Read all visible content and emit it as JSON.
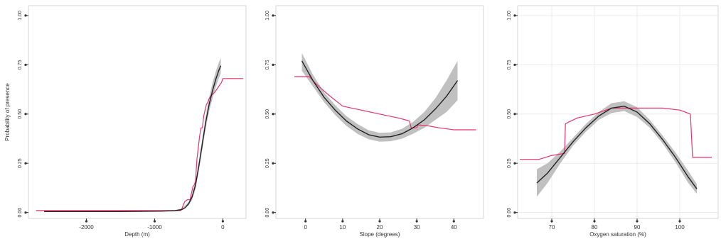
{
  "chart_data": [
    {
      "type": "line",
      "xlabel": "Depth (m)",
      "ylabel": "Probability of presence",
      "xlim": [
        -2850,
        340
      ],
      "ylim": [
        -0.03,
        1.05
      ],
      "xticks": [
        -2000,
        -1000,
        0
      ],
      "xtick_labels": [
        "-2000",
        "-1000",
        "0"
      ],
      "yticks": [
        0,
        0.25,
        0.5,
        0.75,
        1
      ],
      "ytick_labels": [
        "0.00",
        "0.25",
        "0.50",
        "0.75",
        "1.00"
      ],
      "grid": false,
      "colors": {
        "fit": "#222222",
        "ci": "#bdbdbd",
        "observed": "#e8336b"
      },
      "series": [
        {
          "role": "fit",
          "x": [
            -2620,
            -1500,
            -900,
            -700,
            -600,
            -550,
            -500,
            -450,
            -400,
            -350,
            -300,
            -250,
            -200,
            -150,
            -100,
            -60,
            -30
          ],
          "y": [
            0.005,
            0.005,
            0.007,
            0.01,
            0.015,
            0.025,
            0.045,
            0.08,
            0.14,
            0.24,
            0.35,
            0.46,
            0.55,
            0.62,
            0.68,
            0.72,
            0.745
          ]
        },
        {
          "role": "ci_upper",
          "x": [
            -700,
            -600,
            -500,
            -450,
            -400,
            -350,
            -300,
            -250,
            -200,
            -150,
            -100,
            -60,
            -30
          ],
          "y": [
            0.012,
            0.02,
            0.055,
            0.095,
            0.16,
            0.265,
            0.38,
            0.49,
            0.585,
            0.66,
            0.72,
            0.76,
            0.785
          ]
        },
        {
          "role": "ci_lower",
          "x": [
            -700,
            -600,
            -500,
            -450,
            -400,
            -350,
            -300,
            -250,
            -200,
            -150,
            -100,
            -60,
            -30
          ],
          "y": [
            0.008,
            0.012,
            0.037,
            0.065,
            0.12,
            0.215,
            0.32,
            0.43,
            0.515,
            0.58,
            0.64,
            0.68,
            0.705
          ]
        },
        {
          "role": "observed",
          "x": [
            -2740,
            -800,
            -620,
            -600,
            -560,
            -520,
            -480,
            -440,
            -420,
            -400,
            -380,
            -360,
            -340,
            -320,
            -300,
            -280,
            -260,
            -240,
            -220,
            -200,
            -180,
            -150,
            -120,
            -100,
            -60,
            -20,
            0,
            300
          ],
          "y": [
            0.01,
            0.01,
            0.01,
            0.02,
            0.055,
            0.065,
            0.065,
            0.13,
            0.14,
            0.16,
            0.27,
            0.33,
            0.39,
            0.43,
            0.43,
            0.49,
            0.52,
            0.55,
            0.56,
            0.58,
            0.59,
            0.6,
            0.61,
            0.62,
            0.64,
            0.66,
            0.68,
            0.68
          ]
        }
      ]
    },
    {
      "type": "line",
      "xlabel": "Slope (degrees)",
      "ylabel": "",
      "xlim": [
        -8,
        48
      ],
      "ylim": [
        -0.03,
        1.05
      ],
      "xticks": [
        0,
        10,
        20,
        30,
        40
      ],
      "xtick_labels": [
        "0",
        "10",
        "20",
        "30",
        "40"
      ],
      "yticks": [
        0,
        0.25,
        0.5,
        0.75,
        1
      ],
      "ytick_labels": [
        "0.00",
        "0.25",
        "0.50",
        "0.75",
        "1.00"
      ],
      "grid": false,
      "colors": {
        "fit": "#222222",
        "ci": "#bdbdbd",
        "observed": "#e8336b"
      },
      "series": [
        {
          "role": "fit",
          "x": [
            -1,
            2,
            5,
            8,
            11,
            14,
            17,
            20,
            23,
            26,
            29,
            32,
            35,
            38,
            41
          ],
          "y": [
            0.77,
            0.67,
            0.585,
            0.52,
            0.465,
            0.425,
            0.395,
            0.383,
            0.385,
            0.4,
            0.43,
            0.47,
            0.525,
            0.59,
            0.67
          ]
        },
        {
          "role": "ci_upper",
          "x": [
            -1,
            2,
            5,
            8,
            11,
            14,
            17,
            20,
            23,
            26,
            29,
            32,
            35,
            38,
            41
          ],
          "y": [
            0.81,
            0.7,
            0.61,
            0.545,
            0.49,
            0.45,
            0.418,
            0.405,
            0.407,
            0.425,
            0.46,
            0.51,
            0.58,
            0.67,
            0.77
          ]
        },
        {
          "role": "ci_lower",
          "x": [
            -1,
            2,
            5,
            8,
            11,
            14,
            17,
            20,
            23,
            26,
            29,
            32,
            35,
            38,
            41
          ],
          "y": [
            0.72,
            0.64,
            0.56,
            0.495,
            0.44,
            0.4,
            0.372,
            0.36,
            0.362,
            0.375,
            0.4,
            0.43,
            0.47,
            0.51,
            0.57
          ]
        },
        {
          "role": "observed",
          "x": [
            -3,
            1,
            3,
            6,
            10,
            15,
            20,
            25,
            28,
            28.5,
            30,
            30.3,
            33,
            36,
            40,
            46
          ],
          "y": [
            0.69,
            0.69,
            0.65,
            0.6,
            0.54,
            0.52,
            0.5,
            0.48,
            0.465,
            0.43,
            0.43,
            0.445,
            0.44,
            0.43,
            0.42,
            0.42
          ]
        }
      ]
    },
    {
      "type": "line",
      "xlabel": "Oxygen saturation (%)",
      "ylabel": "",
      "xlim": [
        62,
        109
      ],
      "ylim": [
        -0.03,
        1.05
      ],
      "xticks": [
        70,
        80,
        90,
        100
      ],
      "xtick_labels": [
        "70",
        "80",
        "90",
        "100"
      ],
      "yticks": [
        0,
        0.25,
        0.5,
        0.75,
        1
      ],
      "ytick_labels": [
        "0.00",
        "0.25",
        "0.50",
        "0.75",
        "1.00"
      ],
      "grid": true,
      "colors": {
        "fit": "#222222",
        "ci": "#bdbdbd",
        "observed": "#e8336b"
      },
      "series": [
        {
          "role": "fit",
          "x": [
            66.5,
            69,
            72,
            75,
            78,
            81,
            84,
            87,
            90,
            93,
            96,
            99,
            102,
            104
          ],
          "y": [
            0.15,
            0.2,
            0.28,
            0.36,
            0.43,
            0.49,
            0.53,
            0.54,
            0.51,
            0.45,
            0.37,
            0.28,
            0.18,
            0.12
          ]
        },
        {
          "role": "ci_upper",
          "x": [
            66.5,
            69,
            72,
            75,
            78,
            81,
            84,
            87,
            90,
            93,
            96,
            99,
            102,
            104
          ],
          "y": [
            0.22,
            0.25,
            0.31,
            0.38,
            0.45,
            0.51,
            0.555,
            0.565,
            0.535,
            0.47,
            0.39,
            0.305,
            0.21,
            0.145
          ]
        },
        {
          "role": "ci_lower",
          "x": [
            66.5,
            69,
            72,
            75,
            78,
            81,
            84,
            87,
            90,
            93,
            96,
            99,
            102,
            104
          ],
          "y": [
            0.08,
            0.15,
            0.25,
            0.34,
            0.41,
            0.47,
            0.505,
            0.515,
            0.485,
            0.43,
            0.35,
            0.255,
            0.15,
            0.095
          ]
        },
        {
          "role": "observed",
          "x": [
            62.5,
            67,
            70,
            73,
            73.2,
            74,
            76,
            80,
            84,
            90,
            96,
            100,
            102.5,
            103,
            107.5
          ],
          "y": [
            0.27,
            0.27,
            0.29,
            0.3,
            0.45,
            0.46,
            0.48,
            0.5,
            0.53,
            0.53,
            0.53,
            0.52,
            0.5,
            0.28,
            0.28
          ]
        }
      ]
    }
  ]
}
